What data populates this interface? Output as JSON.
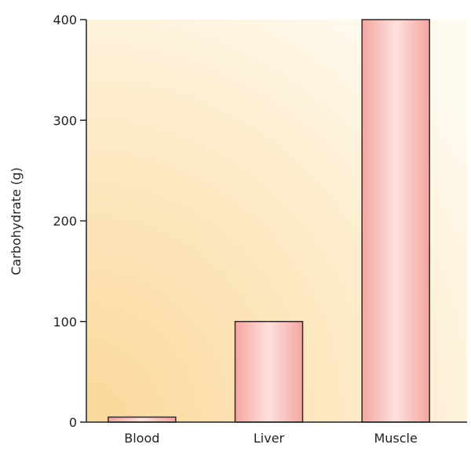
{
  "chart_data": {
    "type": "bar",
    "categories": [
      "Blood",
      "Liver",
      "Muscle"
    ],
    "values": [
      5,
      100,
      400
    ],
    "xlabel": "",
    "ylabel": "Carbohydrate (g)",
    "ylim": [
      0,
      400
    ],
    "yticks": [
      0,
      100,
      200,
      300,
      400
    ],
    "grid": false,
    "colors": {
      "bar_fill_edge": "#f4a6a0",
      "bar_fill_center": "#fde0dc",
      "bar_stroke": "#2b2b2b",
      "background_warm": "#fbd79a",
      "background_light": "#fffaf0",
      "axis": "#222222"
    }
  }
}
